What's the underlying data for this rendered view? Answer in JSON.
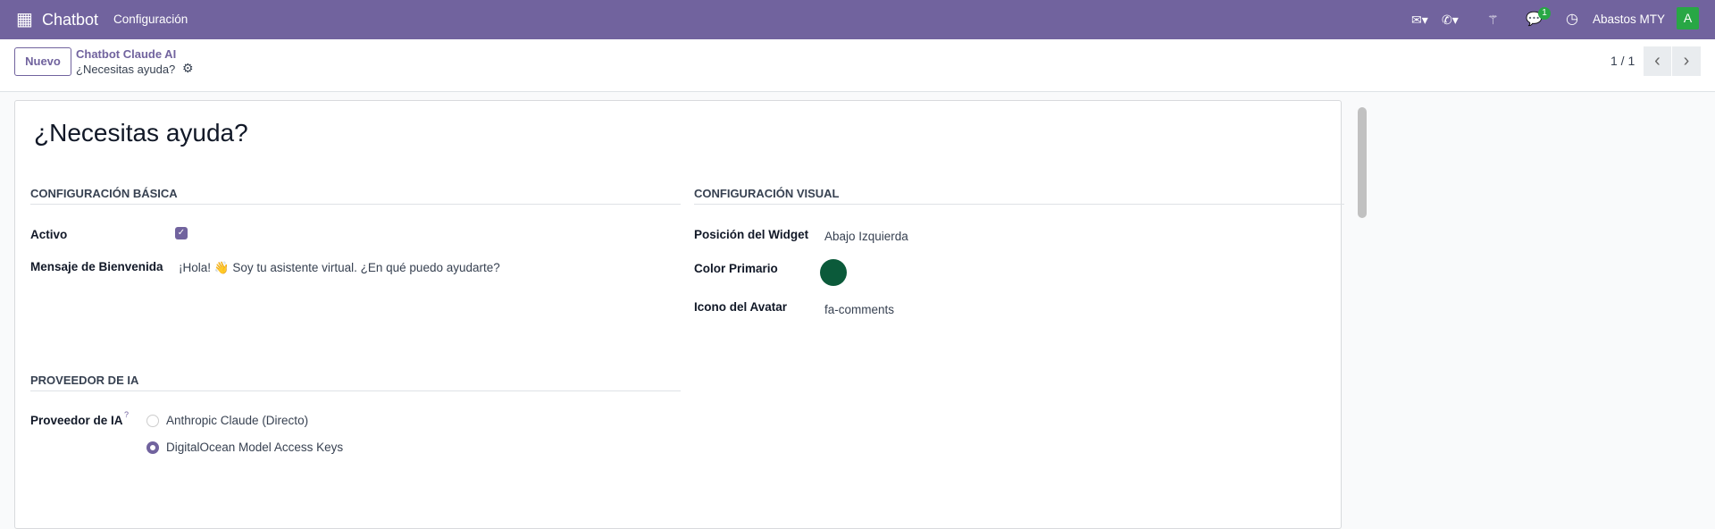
{
  "navbar": {
    "app_name": "Chatbot",
    "menu": [
      "Configuración"
    ],
    "company": "Abastos MTY",
    "avatar_letter": "A",
    "message_count": "1",
    "icons": [
      "apps-grid-icon",
      "envelope-icon",
      "whatsapp-icon",
      "magic-wand-icon",
      "chat-bubbles-icon",
      "clock-icon"
    ],
    "color": "#71639e"
  },
  "control_panel": {
    "new_button": "Nuevo",
    "breadcrumb_parent": "Chatbot Claude AI",
    "breadcrumb_current": "¿Necesitas ayuda?",
    "pager": "1 / 1"
  },
  "form": {
    "title": "¿Necesitas ayuda?",
    "basic": {
      "header": "CONFIGURACIÓN BÁSICA",
      "active_label": "Activo",
      "active": true,
      "welcome_label": "Mensaje de Bienvenida",
      "welcome_value": "¡Hola! 👋 Soy tu asistente virtual. ¿En qué puedo ayudarte?"
    },
    "visual": {
      "header": "CONFIGURACIÓN VISUAL",
      "position_label": "Posición del Widget",
      "position_value": "Abajo Izquierda",
      "color_label": "Color Primario",
      "color_value": "#0b5a3a",
      "icon_label": "Icono del Avatar",
      "icon_value": "fa-comments"
    },
    "provider": {
      "header": "PROVEEDOR DE IA",
      "label": "Proveedor de IA",
      "help": "?",
      "options": [
        "Anthropic Claude (Directo)",
        "DigitalOcean Model Access Keys"
      ],
      "selected": 1
    }
  }
}
